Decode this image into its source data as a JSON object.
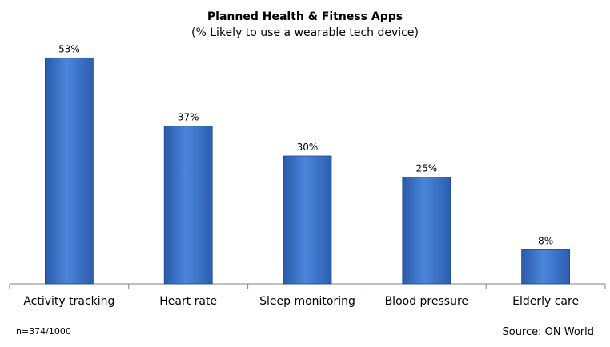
{
  "chart_data": {
    "type": "bar",
    "title": "Planned Health & Fitness Apps",
    "subtitle": "(% Likely to use a wearable tech device)",
    "categories": [
      "Activity tracking",
      "Heart rate",
      "Sleep monitoring",
      "Blood pressure",
      "Elderly care"
    ],
    "values": [
      53,
      37,
      30,
      25,
      8
    ],
    "data_labels": [
      "53%",
      "37%",
      "30%",
      "25%",
      "8%"
    ],
    "unit": "%",
    "ylim": [
      0,
      60
    ],
    "grid": false,
    "legend": "none",
    "bar_color": "#3a70c8"
  },
  "footnote": "n=374/1000",
  "source": "Source: ON World"
}
